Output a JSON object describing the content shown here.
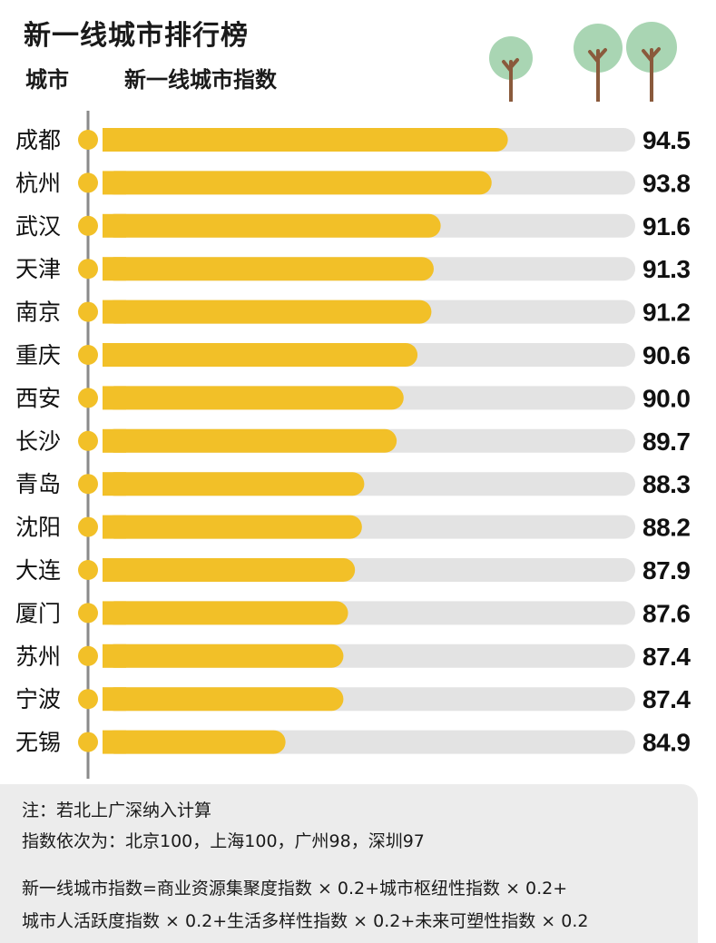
{
  "header": {
    "title": "新一线城市排行榜",
    "col_city": "城市",
    "col_index": "新一线城市指数"
  },
  "colors": {
    "bar": "#f2c028",
    "track": "#e3e3e3",
    "tree_canopy": "#a9d5b3",
    "tree_trunk": "#8a5a3c"
  },
  "decorations": [
    "tree-icon",
    "tree-icon",
    "tree-icon"
  ],
  "chart_data": {
    "type": "bar",
    "orientation": "horizontal",
    "categories": [
      "成都",
      "杭州",
      "武汉",
      "天津",
      "南京",
      "重庆",
      "西安",
      "长沙",
      "青岛",
      "沈阳",
      "大连",
      "厦门",
      "苏州",
      "宁波",
      "无锡"
    ],
    "values": [
      94.5,
      93.8,
      91.6,
      91.3,
      91.2,
      90.6,
      90.0,
      89.7,
      88.3,
      88.2,
      87.9,
      87.6,
      87.4,
      87.4,
      84.9
    ],
    "value_labels": [
      "94.5",
      "93.8",
      "91.6",
      "91.3",
      "91.2",
      "90.6",
      "90.0",
      "89.7",
      "88.3",
      "88.2",
      "87.9",
      "87.6",
      "87.4",
      "87.4",
      "84.9"
    ],
    "title": "新一线城市排行榜",
    "xlim": [
      77,
      100
    ],
    "grid": false,
    "legend": "none"
  },
  "notes": {
    "line1": "注：若北上广深纳入计算",
    "line2": "指数依次为：北京100，上海100，广州98，深圳97",
    "line3": "新一线城市指数=商业资源集聚度指数 × 0.2+城市枢纽性指数 × 0.2+",
    "line4": "城市人活跃度指数 × 0.2+生活多样性指数 × 0.2+未来可塑性指数 × 0.2"
  }
}
